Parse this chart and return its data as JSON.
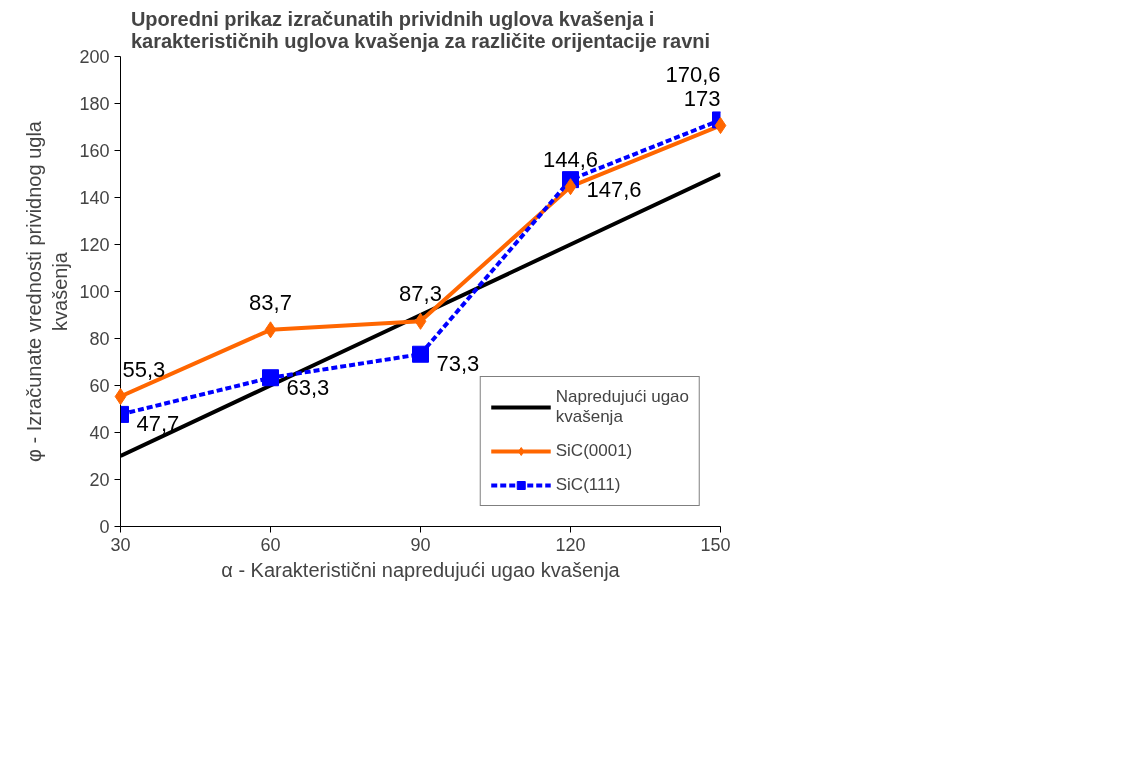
{
  "chart_data": {
    "type": "line",
    "title": "Uporedni prikaz izračunatih prividnih uglova kvašenja i\nkarakterističnih uglova kvašenja za različite orijentacije ravni",
    "xlabel": "α - Karakteristični napredujući ugao kvašenja",
    "ylabel": "φ - Izračunate vrednosti prividnog ugla\nkvašenja",
    "x": [
      30,
      60,
      90,
      120,
      150
    ],
    "series": [
      {
        "name": "Napredujući ugao\nkvašenja",
        "color": "#000000",
        "values": [
          30,
          60,
          90,
          120,
          150
        ],
        "marker": "none",
        "line_style": "solid"
      },
      {
        "name": "SiC(0001)",
        "color": "#ff6600",
        "values": [
          55.3,
          83.7,
          87.3,
          144.6,
          170.6
        ],
        "marker": "diamond",
        "line_style": "solid",
        "value_labels": [
          "55,3",
          "83,7",
          "87,3",
          "144,6",
          "170,6"
        ]
      },
      {
        "name": "SiC(111)",
        "color": "#0000ff",
        "values": [
          47.7,
          63.3,
          73.3,
          147.6,
          173
        ],
        "marker": "square",
        "line_style": "dashed",
        "value_labels": [
          "47,7",
          "63,3",
          "73,3",
          "147,6",
          "173"
        ]
      }
    ],
    "xlim": [
      30,
      150
    ],
    "xticks": [
      30,
      60,
      90,
      120,
      150
    ],
    "ylim": [
      0,
      200
    ],
    "yticks": [
      0,
      20,
      40,
      60,
      80,
      100,
      120,
      140,
      160,
      180,
      200
    ],
    "grid": false,
    "legend": "bottom right"
  }
}
